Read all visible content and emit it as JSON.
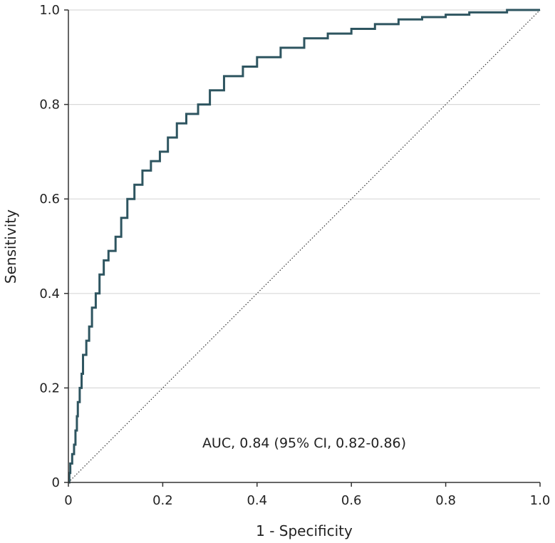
{
  "chart_data": {
    "type": "line",
    "title": "",
    "xlabel": "1 - Specificity",
    "ylabel": "Sensitivity",
    "xlim": [
      0,
      1
    ],
    "ylim": [
      0,
      1
    ],
    "x_ticks": [
      {
        "value": 0,
        "label": "0"
      },
      {
        "value": 0.2,
        "label": "0.2"
      },
      {
        "value": 0.4,
        "label": "0.4"
      },
      {
        "value": 0.6,
        "label": "0.6"
      },
      {
        "value": 0.8,
        "label": "0.8"
      },
      {
        "value": 1.0,
        "label": "1.0"
      }
    ],
    "y_ticks": [
      {
        "value": 0,
        "label": "0"
      },
      {
        "value": 0.2,
        "label": "0.2"
      },
      {
        "value": 0.4,
        "label": "0.4"
      },
      {
        "value": 0.6,
        "label": "0.6"
      },
      {
        "value": 0.8,
        "label": "0.8"
      },
      {
        "value": 1.0,
        "label": "1.0"
      }
    ],
    "grid": "horizontal",
    "annotation": "AUC, 0.84 (95% CI, 0.82-0.86)",
    "colors": {
      "roc": "#2e5560",
      "reference": "#333333",
      "grid": "#d9d9d9",
      "axis": "#333333"
    },
    "series": [
      {
        "values": [
          [
            0.0,
            0.0
          ],
          [
            0.002,
            0.02
          ],
          [
            0.004,
            0.04
          ],
          [
            0.008,
            0.06
          ],
          [
            0.012,
            0.08
          ],
          [
            0.015,
            0.11
          ],
          [
            0.018,
            0.14
          ],
          [
            0.02,
            0.17
          ],
          [
            0.024,
            0.2
          ],
          [
            0.028,
            0.23
          ],
          [
            0.031,
            0.27
          ],
          [
            0.038,
            0.3
          ],
          [
            0.044,
            0.33
          ],
          [
            0.05,
            0.37
          ],
          [
            0.058,
            0.4
          ],
          [
            0.066,
            0.44
          ],
          [
            0.075,
            0.47
          ],
          [
            0.085,
            0.49
          ],
          [
            0.1,
            0.52
          ],
          [
            0.112,
            0.56
          ],
          [
            0.125,
            0.6
          ],
          [
            0.14,
            0.63
          ],
          [
            0.157,
            0.66
          ],
          [
            0.175,
            0.68
          ],
          [
            0.194,
            0.7
          ],
          [
            0.211,
            0.73
          ],
          [
            0.23,
            0.76
          ],
          [
            0.25,
            0.78
          ],
          [
            0.275,
            0.8
          ],
          [
            0.3,
            0.83
          ],
          [
            0.33,
            0.86
          ],
          [
            0.37,
            0.88
          ],
          [
            0.4,
            0.9
          ],
          [
            0.45,
            0.92
          ],
          [
            0.5,
            0.94
          ],
          [
            0.55,
            0.95
          ],
          [
            0.6,
            0.96
          ],
          [
            0.65,
            0.97
          ],
          [
            0.7,
            0.98
          ],
          [
            0.75,
            0.985
          ],
          [
            0.8,
            0.99
          ],
          [
            0.85,
            0.995
          ],
          [
            0.93,
            1.0
          ],
          [
            1.0,
            1.0
          ]
        ]
      },
      {
        "values": [
          [
            0,
            0
          ],
          [
            1,
            1
          ]
        ]
      }
    ]
  }
}
